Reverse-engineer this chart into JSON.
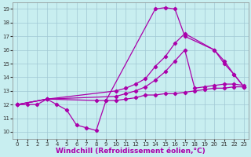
{
  "background_color": "#c8eef0",
  "grid_color": "#a0c8d4",
  "line_color": "#aa00aa",
  "marker": "D",
  "markersize": 2.2,
  "linewidth": 0.9,
  "xlabel": "Windchill (Refroidissement éolien,°C)",
  "xlabel_fontsize": 6.5,
  "xlim": [
    -0.5,
    23.5
  ],
  "ylim": [
    9.5,
    19.5
  ],
  "xticks": [
    0,
    1,
    2,
    3,
    4,
    5,
    6,
    7,
    8,
    9,
    10,
    11,
    12,
    13,
    14,
    15,
    16,
    17,
    18,
    19,
    20,
    21,
    22,
    23
  ],
  "yticks": [
    10,
    11,
    12,
    13,
    14,
    15,
    16,
    17,
    18,
    19
  ],
  "series": [
    {
      "x": [
        0,
        1,
        2,
        3,
        4,
        5,
        6,
        7,
        8,
        9,
        10,
        11,
        12,
        13,
        14,
        15,
        16,
        17,
        18,
        19,
        20,
        21,
        22,
        23
      ],
      "y": [
        12.0,
        12.0,
        12.0,
        12.4,
        12.0,
        11.6,
        10.5,
        10.3,
        10.1,
        12.3,
        12.3,
        12.4,
        12.5,
        12.7,
        12.7,
        12.8,
        12.8,
        12.9,
        13.0,
        13.1,
        13.2,
        13.2,
        13.3,
        13.3
      ]
    },
    {
      "x": [
        0,
        3,
        8,
        9,
        14,
        15,
        16,
        17,
        20,
        21,
        22,
        23
      ],
      "y": [
        12.0,
        12.4,
        12.3,
        12.3,
        19.0,
        19.1,
        19.0,
        17.0,
        16.0,
        15.0,
        14.2,
        13.3
      ]
    },
    {
      "x": [
        0,
        3,
        10,
        11,
        12,
        13,
        14,
        15,
        16,
        17,
        20,
        21,
        22,
        23
      ],
      "y": [
        12.0,
        12.4,
        13.0,
        13.2,
        13.5,
        13.9,
        14.8,
        15.5,
        16.5,
        17.2,
        16.0,
        15.2,
        14.2,
        13.3
      ]
    },
    {
      "x": [
        0,
        3,
        10,
        11,
        12,
        13,
        14,
        15,
        16,
        17,
        18,
        19,
        20,
        21,
        22,
        23
      ],
      "y": [
        12.0,
        12.4,
        12.6,
        12.8,
        13.0,
        13.3,
        13.8,
        14.4,
        15.2,
        16.0,
        13.2,
        13.3,
        13.4,
        13.5,
        13.5,
        13.4
      ]
    }
  ]
}
